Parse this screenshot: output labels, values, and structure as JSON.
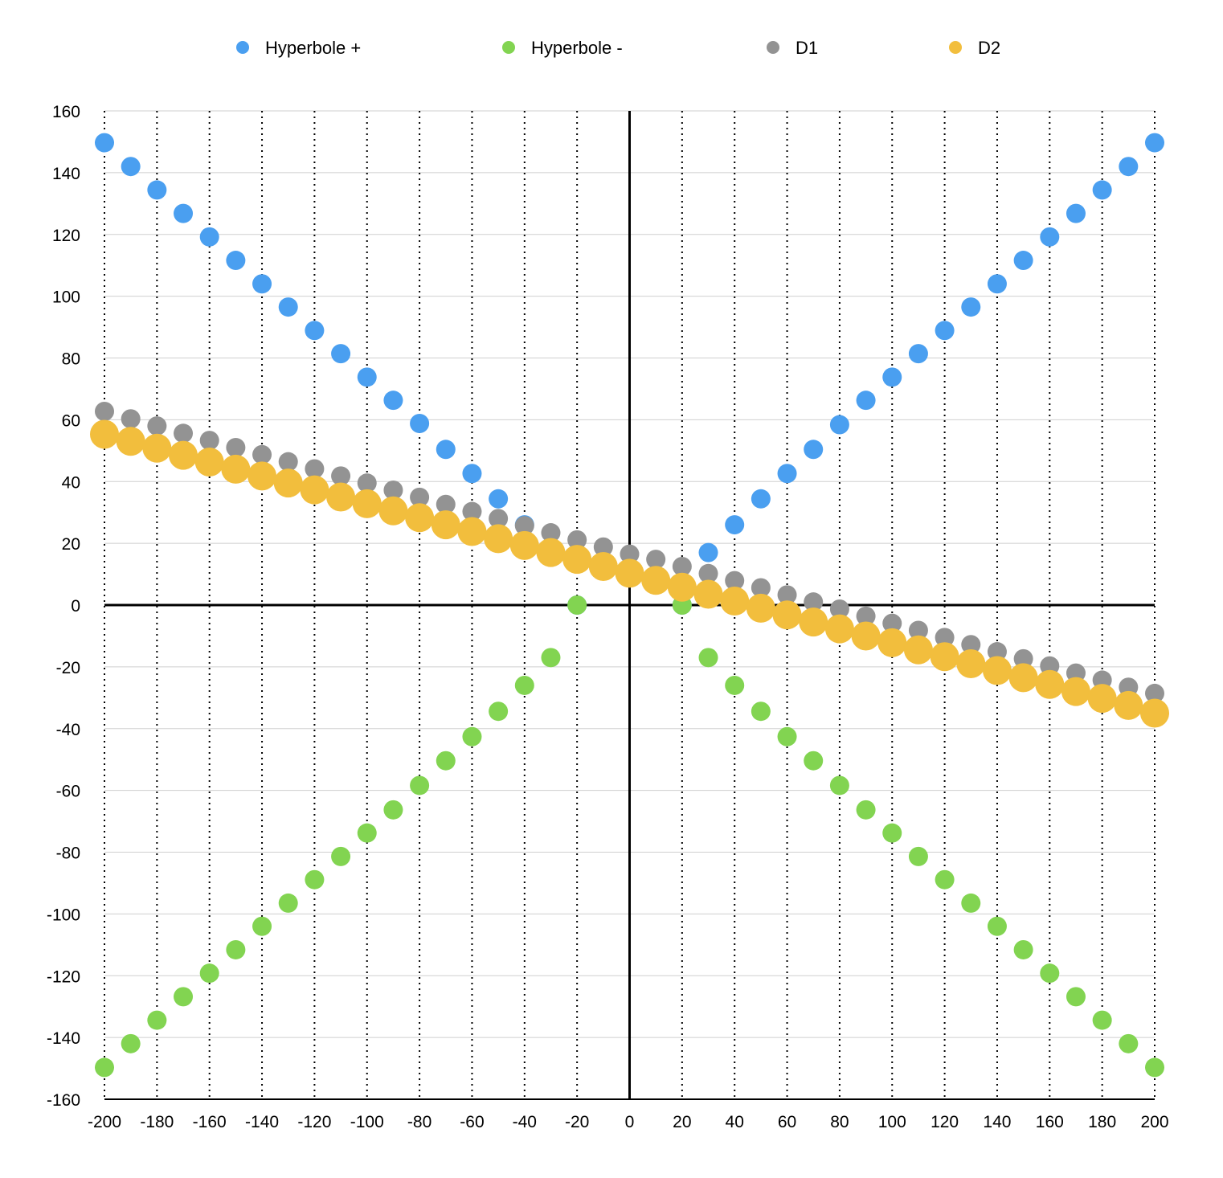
{
  "chart_data": {
    "type": "scatter",
    "xlim": [
      -200,
      200
    ],
    "ylim": [
      -160,
      160
    ],
    "x_ticks": [
      "-200",
      "-180",
      "-160",
      "-140",
      "-120",
      "-100",
      "-80",
      "-60",
      "-40",
      "-20",
      "0",
      "20",
      "40",
      "60",
      "80",
      "100",
      "120",
      "140",
      "160",
      "180",
      "200"
    ],
    "y_ticks": [
      "160",
      "140",
      "120",
      "100",
      "80",
      "60",
      "40",
      "20",
      "0",
      "-20",
      "-40",
      "-60",
      "-80",
      "-100",
      "-120",
      "-140",
      "-160"
    ],
    "grid": {
      "horizontal": "solid",
      "vertical": "dotted"
    },
    "legend_position": "top",
    "series": [
      {
        "name": "Hyperbole +",
        "color": "#4a9ff0",
        "points": [
          [
            -200,
            149.7
          ],
          [
            -190,
            142.0
          ],
          [
            -180,
            134.4
          ],
          [
            -170,
            126.8
          ],
          [
            -160,
            119.2
          ],
          [
            -150,
            111.6
          ],
          [
            -140,
            104.0
          ],
          [
            -130,
            96.5
          ],
          [
            -120,
            88.9
          ],
          [
            -110,
            81.4
          ],
          [
            -100,
            73.8
          ],
          [
            -90,
            66.3
          ],
          [
            -80,
            58.8
          ],
          [
            -70,
            50.4
          ],
          [
            -60,
            42.6
          ],
          [
            -50,
            34.4
          ],
          [
            -40,
            26.0
          ],
          [
            -30,
            17.0
          ],
          [
            -20,
            0
          ],
          [
            20,
            0
          ],
          [
            30,
            17.0
          ],
          [
            40,
            26.0
          ],
          [
            50,
            34.4
          ],
          [
            60,
            42.6
          ],
          [
            70,
            50.4
          ],
          [
            80,
            58.4
          ],
          [
            90,
            66.3
          ],
          [
            100,
            73.8
          ],
          [
            110,
            81.4
          ],
          [
            120,
            88.9
          ],
          [
            130,
            96.5
          ],
          [
            140,
            104.0
          ],
          [
            150,
            111.6
          ],
          [
            160,
            119.2
          ],
          [
            170,
            126.8
          ],
          [
            180,
            134.4
          ],
          [
            190,
            142.0
          ],
          [
            200,
            149.7
          ]
        ]
      },
      {
        "name": "Hyperbole -",
        "color": "#82d451",
        "points": [
          [
            -200,
            -149.7
          ],
          [
            -190,
            -142.0
          ],
          [
            -180,
            -134.4
          ],
          [
            -170,
            -126.8
          ],
          [
            -160,
            -119.2
          ],
          [
            -150,
            -111.6
          ],
          [
            -140,
            -104.0
          ],
          [
            -130,
            -96.5
          ],
          [
            -120,
            -88.9
          ],
          [
            -110,
            -81.4
          ],
          [
            -100,
            -73.8
          ],
          [
            -90,
            -66.3
          ],
          [
            -80,
            -58.4
          ],
          [
            -70,
            -50.4
          ],
          [
            -60,
            -42.6
          ],
          [
            -50,
            -34.4
          ],
          [
            -40,
            -26.0
          ],
          [
            -30,
            -17.0
          ],
          [
            -20,
            0
          ],
          [
            20,
            0
          ],
          [
            30,
            -17.0
          ],
          [
            40,
            -26.0
          ],
          [
            50,
            -34.4
          ],
          [
            60,
            -42.6
          ],
          [
            70,
            -50.4
          ],
          [
            80,
            -58.4
          ],
          [
            90,
            -66.3
          ],
          [
            100,
            -73.8
          ],
          [
            110,
            -81.4
          ],
          [
            120,
            -88.9
          ],
          [
            130,
            -96.5
          ],
          [
            140,
            -104.0
          ],
          [
            150,
            -111.6
          ],
          [
            160,
            -119.2
          ],
          [
            170,
            -126.8
          ],
          [
            180,
            -134.4
          ],
          [
            190,
            -142.0
          ],
          [
            200,
            -149.7
          ]
        ]
      },
      {
        "name": "D1",
        "color": "#939393",
        "x": [
          -200,
          -190,
          -180,
          -170,
          -160,
          -150,
          -140,
          -130,
          -120,
          -110,
          -100,
          -90,
          -80,
          -70,
          -60,
          -50,
          -40,
          -30,
          -20,
          -10,
          0,
          10,
          20,
          30,
          40,
          50,
          60,
          70,
          80,
          90,
          100,
          110,
          120,
          130,
          140,
          150,
          160,
          170,
          180,
          190,
          200
        ],
        "y": [
          62.7,
          60.3,
          58.0,
          55.6,
          53.3,
          51.0,
          48.7,
          46.4,
          44.1,
          41.8,
          39.5,
          37.2,
          34.9,
          32.6,
          30.3,
          28.0,
          25.7,
          23.4,
          21.1,
          18.8,
          16.5,
          14.8,
          12.5,
          10.2,
          7.9,
          5.6,
          3.3,
          1.0,
          -1.3,
          -3.6,
          -5.9,
          -8.2,
          -10.5,
          -12.8,
          -15.1,
          -17.4,
          -19.7,
          -22.0,
          -24.3,
          -26.6,
          -28.6
        ]
      },
      {
        "name": "D2",
        "color": "#f2be3d",
        "x": [
          -200,
          -190,
          -180,
          -170,
          -160,
          -150,
          -140,
          -130,
          -120,
          -110,
          -100,
          -90,
          -80,
          -70,
          -60,
          -50,
          -40,
          -30,
          -20,
          -10,
          0,
          10,
          20,
          30,
          40,
          50,
          60,
          70,
          80,
          90,
          100,
          110,
          120,
          130,
          140,
          150,
          160,
          170,
          180,
          190,
          200
        ],
        "y": [
          55.3,
          53.0,
          50.8,
          48.5,
          46.3,
          44.0,
          41.8,
          39.5,
          37.3,
          35.0,
          32.8,
          30.5,
          28.3,
          26.0,
          23.8,
          21.5,
          19.3,
          17.0,
          14.8,
          12.5,
          10.3,
          8.0,
          5.8,
          3.5,
          1.3,
          -1.0,
          -3.2,
          -5.5,
          -7.7,
          -10.0,
          -12.2,
          -14.5,
          -16.7,
          -19.0,
          -21.2,
          -23.5,
          -25.7,
          -28.0,
          -30.2,
          -32.5,
          -35.0
        ]
      }
    ]
  }
}
